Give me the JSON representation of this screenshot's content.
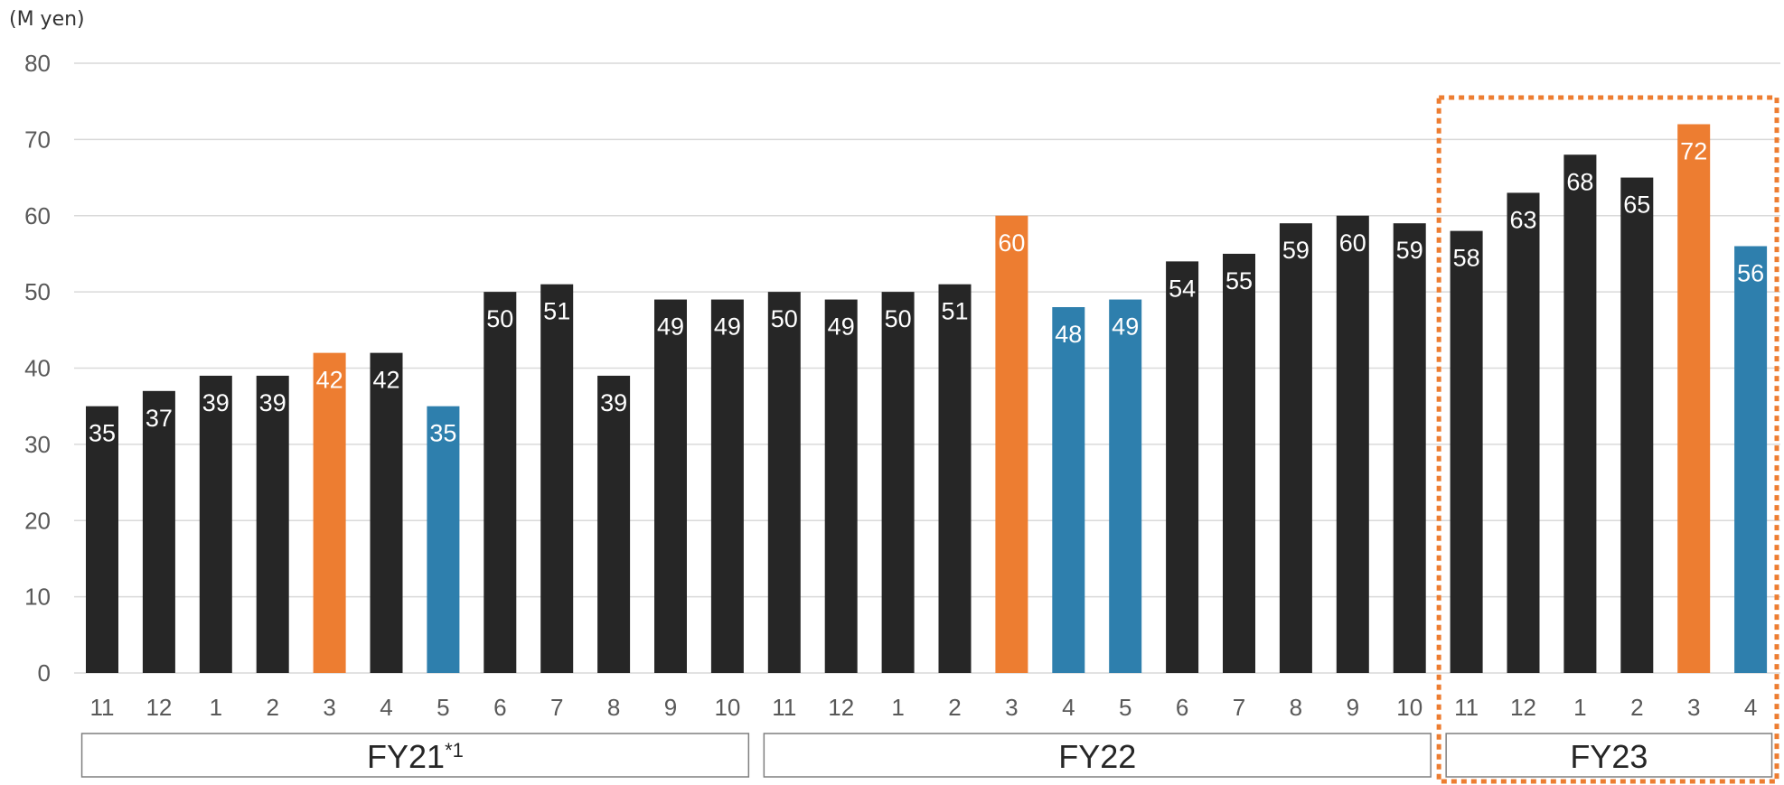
{
  "colors": {
    "normal": "#262626",
    "march": "#ED7D31",
    "dip": "#2E7FAD",
    "grid": "#D9D9D9",
    "highlight_border": "#ED7D31"
  },
  "chart_data": {
    "type": "bar",
    "unit_label": "(M yen)",
    "ylim": [
      0,
      80
    ],
    "yticks": [
      "0",
      "10",
      "20",
      "30",
      "40",
      "50",
      "60",
      "70",
      "80"
    ],
    "grid": true,
    "categories": [
      "11",
      "12",
      "1",
      "2",
      "3",
      "4",
      "5",
      "6",
      "7",
      "8",
      "9",
      "10",
      "11",
      "12",
      "1",
      "2",
      "3",
      "4",
      "5",
      "6",
      "7",
      "8",
      "9",
      "10",
      "11",
      "12",
      "1",
      "2",
      "3",
      "4"
    ],
    "values": [
      35,
      37,
      39,
      39,
      42,
      42,
      35,
      50,
      51,
      39,
      49,
      49,
      50,
      49,
      50,
      51,
      60,
      48,
      49,
      54,
      55,
      59,
      60,
      59,
      58,
      63,
      68,
      65,
      72,
      56
    ],
    "bar_color_keys": [
      "normal",
      "normal",
      "normal",
      "normal",
      "march",
      "normal",
      "dip",
      "normal",
      "normal",
      "normal",
      "normal",
      "normal",
      "normal",
      "normal",
      "normal",
      "normal",
      "march",
      "dip",
      "dip",
      "normal",
      "normal",
      "normal",
      "normal",
      "normal",
      "normal",
      "normal",
      "normal",
      "normal",
      "march",
      "dip"
    ],
    "groups": [
      {
        "label": "FY21",
        "footnote": "*1",
        "start": 0,
        "end": 11
      },
      {
        "label": "FY22",
        "footnote": "",
        "start": 12,
        "end": 23
      },
      {
        "label": "FY23",
        "footnote": "",
        "start": 24,
        "end": 29
      }
    ],
    "highlight_group": "FY23"
  }
}
